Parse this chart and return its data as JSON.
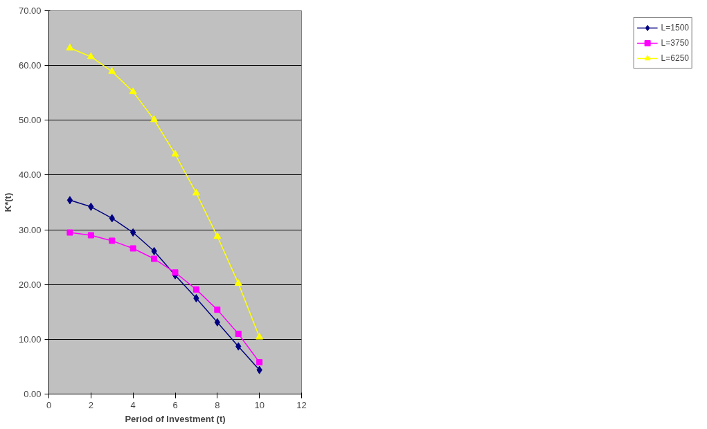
{
  "chart_data": {
    "type": "line",
    "xlabel": "Period of Investment (t)",
    "ylabel": "K*(t)",
    "x": [
      1,
      2,
      3,
      4,
      5,
      6,
      7,
      8,
      9,
      10
    ],
    "series": [
      {
        "name": "L=1500",
        "color": "#000080",
        "marker": "diamond",
        "values": [
          35.4,
          34.2,
          32.1,
          29.5,
          26.1,
          21.7,
          17.5,
          13.1,
          8.7,
          4.4
        ]
      },
      {
        "name": "L=3750",
        "color": "#ff00ff",
        "marker": "square",
        "values": [
          29.5,
          29.0,
          28.0,
          26.6,
          24.7,
          22.2,
          19.1,
          15.4,
          11.0,
          5.8
        ]
      },
      {
        "name": "L=6250",
        "color": "#ffff00",
        "marker": "triangle",
        "values": [
          63.2,
          61.6,
          58.9,
          55.2,
          50.1,
          43.8,
          36.7,
          28.8,
          20.2,
          10.4
        ]
      }
    ],
    "xlim": [
      0,
      12
    ],
    "xticks": [
      0,
      2,
      4,
      6,
      8,
      10,
      12
    ],
    "ylim": [
      0,
      70
    ],
    "yticks": [
      {
        "value": 0,
        "label": "0.00"
      },
      {
        "value": 10,
        "label": "10.00"
      },
      {
        "value": 20,
        "label": "20.00"
      },
      {
        "value": 30,
        "label": "30.00"
      },
      {
        "value": 40,
        "label": "40.00"
      },
      {
        "value": 50,
        "label": "50.00"
      },
      {
        "value": 60,
        "label": "60.00"
      },
      {
        "value": 70,
        "label": "70.00"
      }
    ],
    "grid": "y",
    "legend": "right"
  }
}
